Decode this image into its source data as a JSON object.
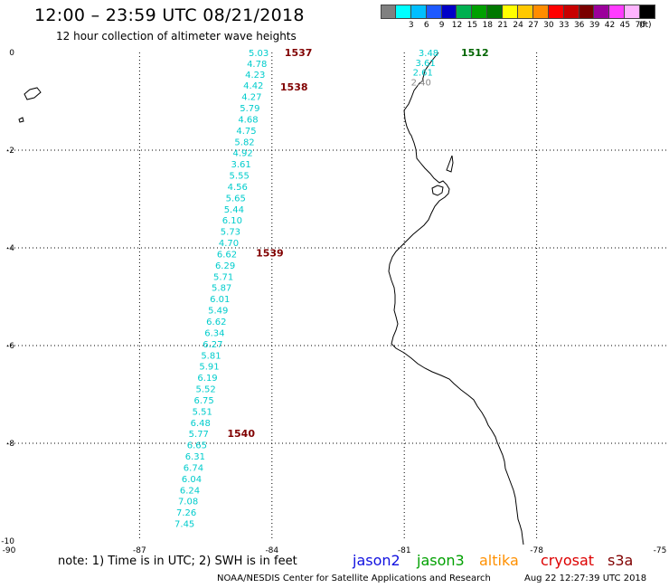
{
  "header": {
    "title": "12:00 – 23:59 UTC 08/21/2018",
    "subtitle": "12 hour collection of altimeter wave heights"
  },
  "scale": {
    "unit_label": "(ft)",
    "bins": [
      {
        "color": "#808080",
        "label": ""
      },
      {
        "color": "#00ffff",
        "label": "3"
      },
      {
        "color": "#00bfff",
        "label": "6"
      },
      {
        "color": "#1e5aff",
        "label": "9"
      },
      {
        "color": "#0000c8",
        "label": "12"
      },
      {
        "color": "#00b050",
        "label": "15"
      },
      {
        "color": "#00a000",
        "label": "18"
      },
      {
        "color": "#007800",
        "label": "21"
      },
      {
        "color": "#ffff00",
        "label": "24"
      },
      {
        "color": "#ffc800",
        "label": "27"
      },
      {
        "color": "#ff8c00",
        "label": "30"
      },
      {
        "color": "#ff0000",
        "label": "33"
      },
      {
        "color": "#c80000",
        "label": "36"
      },
      {
        "color": "#7a0000",
        "label": "39"
      },
      {
        "color": "#9b009b",
        "label": "42"
      },
      {
        "color": "#ff3cff",
        "label": "45"
      },
      {
        "color": "#ffb4ff",
        "label": "70"
      },
      {
        "color": "#000000",
        "label": ""
      }
    ]
  },
  "axes": {
    "x_range": [
      -90,
      -75
    ],
    "y_range": [
      -10,
      0
    ],
    "x_ticks": [
      {
        "value": -90,
        "label": "-90"
      },
      {
        "value": -87,
        "label": "-87"
      },
      {
        "value": -84,
        "label": "-84"
      },
      {
        "value": -81,
        "label": "-81"
      },
      {
        "value": -78,
        "label": "-78"
      },
      {
        "value": -75,
        "label": "-75"
      }
    ],
    "y_ticks": [
      {
        "value": 0,
        "label": "0"
      },
      {
        "value": -2,
        "label": "-2"
      },
      {
        "value": -4,
        "label": "-4"
      },
      {
        "value": -6,
        "label": "-6"
      },
      {
        "value": -8,
        "label": "-8"
      },
      {
        "value": -10,
        "label": "-10"
      }
    ],
    "grid": "dotted"
  },
  "chart_data": {
    "type": "scatter",
    "x_axis": "longitude",
    "y_axis": "latitude",
    "series": [
      {
        "name": "cryosat s3a",
        "color": "#00cccc",
        "points": [
          {
            "lon": -84.3,
            "lat": 0.0,
            "swh": "5.03"
          },
          {
            "lon": -84.34,
            "lat": -0.22,
            "swh": "4.78"
          },
          {
            "lon": -84.38,
            "lat": -0.44,
            "swh": "4.23"
          },
          {
            "lon": -84.42,
            "lat": -0.67,
            "swh": "4.42"
          },
          {
            "lon": -84.46,
            "lat": -0.9,
            "swh": "4.27"
          },
          {
            "lon": -84.5,
            "lat": -1.13,
            "swh": "5.79"
          },
          {
            "lon": -84.54,
            "lat": -1.36,
            "swh": "4.68"
          },
          {
            "lon": -84.58,
            "lat": -1.59,
            "swh": "4.75"
          },
          {
            "lon": -84.62,
            "lat": -1.82,
            "swh": "5.82"
          },
          {
            "lon": -84.66,
            "lat": -2.05,
            "swh": "4.92"
          },
          {
            "lon": -84.7,
            "lat": -2.28,
            "swh": "3.61"
          },
          {
            "lon": -84.74,
            "lat": -2.51,
            "swh": "5.55"
          },
          {
            "lon": -84.78,
            "lat": -2.74,
            "swh": "4.56"
          },
          {
            "lon": -84.82,
            "lat": -2.97,
            "swh": "5.65"
          },
          {
            "lon": -84.86,
            "lat": -3.2,
            "swh": "5.44"
          },
          {
            "lon": -84.9,
            "lat": -3.43,
            "swh": "6.10"
          },
          {
            "lon": -84.94,
            "lat": -3.66,
            "swh": "5.73"
          },
          {
            "lon": -84.98,
            "lat": -3.89,
            "swh": "4.70"
          },
          {
            "lon": -85.02,
            "lat": -4.12,
            "swh": "6.62"
          },
          {
            "lon": -85.06,
            "lat": -4.35,
            "swh": "6.29"
          },
          {
            "lon": -85.1,
            "lat": -4.58,
            "swh": "5.71"
          },
          {
            "lon": -85.14,
            "lat": -4.81,
            "swh": "5.87"
          },
          {
            "lon": -85.18,
            "lat": -5.04,
            "swh": "6.01"
          },
          {
            "lon": -85.22,
            "lat": -5.27,
            "swh": "5.49"
          },
          {
            "lon": -85.26,
            "lat": -5.5,
            "swh": "6.62"
          },
          {
            "lon": -85.3,
            "lat": -5.73,
            "swh": "6.34"
          },
          {
            "lon": -85.34,
            "lat": -5.96,
            "swh": "6.27"
          },
          {
            "lon": -85.38,
            "lat": -6.19,
            "swh": "5.81"
          },
          {
            "lon": -85.42,
            "lat": -6.42,
            "swh": "5.91"
          },
          {
            "lon": -85.46,
            "lat": -6.65,
            "swh": "6.19"
          },
          {
            "lon": -85.5,
            "lat": -6.88,
            "swh": "5.52"
          },
          {
            "lon": -85.54,
            "lat": -7.11,
            "swh": "6.75"
          },
          {
            "lon": -85.58,
            "lat": -7.34,
            "swh": "5.51"
          },
          {
            "lon": -85.62,
            "lat": -7.57,
            "swh": "6.48"
          },
          {
            "lon": -85.66,
            "lat": -7.8,
            "swh": "5.77"
          },
          {
            "lon": -85.7,
            "lat": -8.03,
            "swh": "6.65"
          },
          {
            "lon": -85.74,
            "lat": -8.26,
            "swh": "6.31"
          },
          {
            "lon": -85.78,
            "lat": -8.49,
            "swh": "6.74"
          },
          {
            "lon": -85.82,
            "lat": -8.72,
            "swh": "6.04"
          },
          {
            "lon": -85.86,
            "lat": -8.95,
            "swh": "6.24"
          },
          {
            "lon": -85.9,
            "lat": -9.18,
            "swh": "7.08"
          },
          {
            "lon": -85.94,
            "lat": -9.41,
            "swh": "7.26"
          },
          {
            "lon": -85.98,
            "lat": -9.64,
            "swh": "7.45"
          }
        ]
      },
      {
        "name": "jason3",
        "color": "#00cccc",
        "points": [
          {
            "lon": -80.45,
            "lat": 0.0,
            "swh": "3.48"
          },
          {
            "lon": -80.52,
            "lat": -0.2,
            "swh": "3.61"
          },
          {
            "lon": -80.58,
            "lat": -0.4,
            "swh": "2.61"
          },
          {
            "lon": -80.62,
            "lat": -0.6,
            "swh": "2.40"
          }
        ]
      }
    ],
    "time_labels": [
      {
        "text": "1537",
        "lon": -84.0,
        "lat": 0.0,
        "color": "#800000"
      },
      {
        "text": "1538",
        "lon": -84.1,
        "lat": -0.7,
        "color": "#800000"
      },
      {
        "text": "1539",
        "lon": -84.65,
        "lat": -4.1,
        "color": "#800000"
      },
      {
        "text": "1540",
        "lon": -85.3,
        "lat": -7.8,
        "color": "#800000"
      },
      {
        "text": "1512",
        "lon": -80.0,
        "lat": 0.0,
        "color": "#006400"
      }
    ]
  },
  "footer": {
    "note": "note: 1) Time is in UTC; 2) SWH is in feet",
    "legend": [
      {
        "label": "jason2",
        "color": "#1010e0"
      },
      {
        "label": "jason3",
        "color": "#00a000"
      },
      {
        "label": "altika",
        "color": "#ff9000"
      },
      {
        "label": "cryosat",
        "color": "#dd0000"
      },
      {
        "label": "s3a",
        "color": "#800000"
      }
    ],
    "credit": "NOAA/NESDIS Center for Satellite Applications and Research",
    "timestamp": "Aug 22 12:27:39 UTC 2018"
  }
}
